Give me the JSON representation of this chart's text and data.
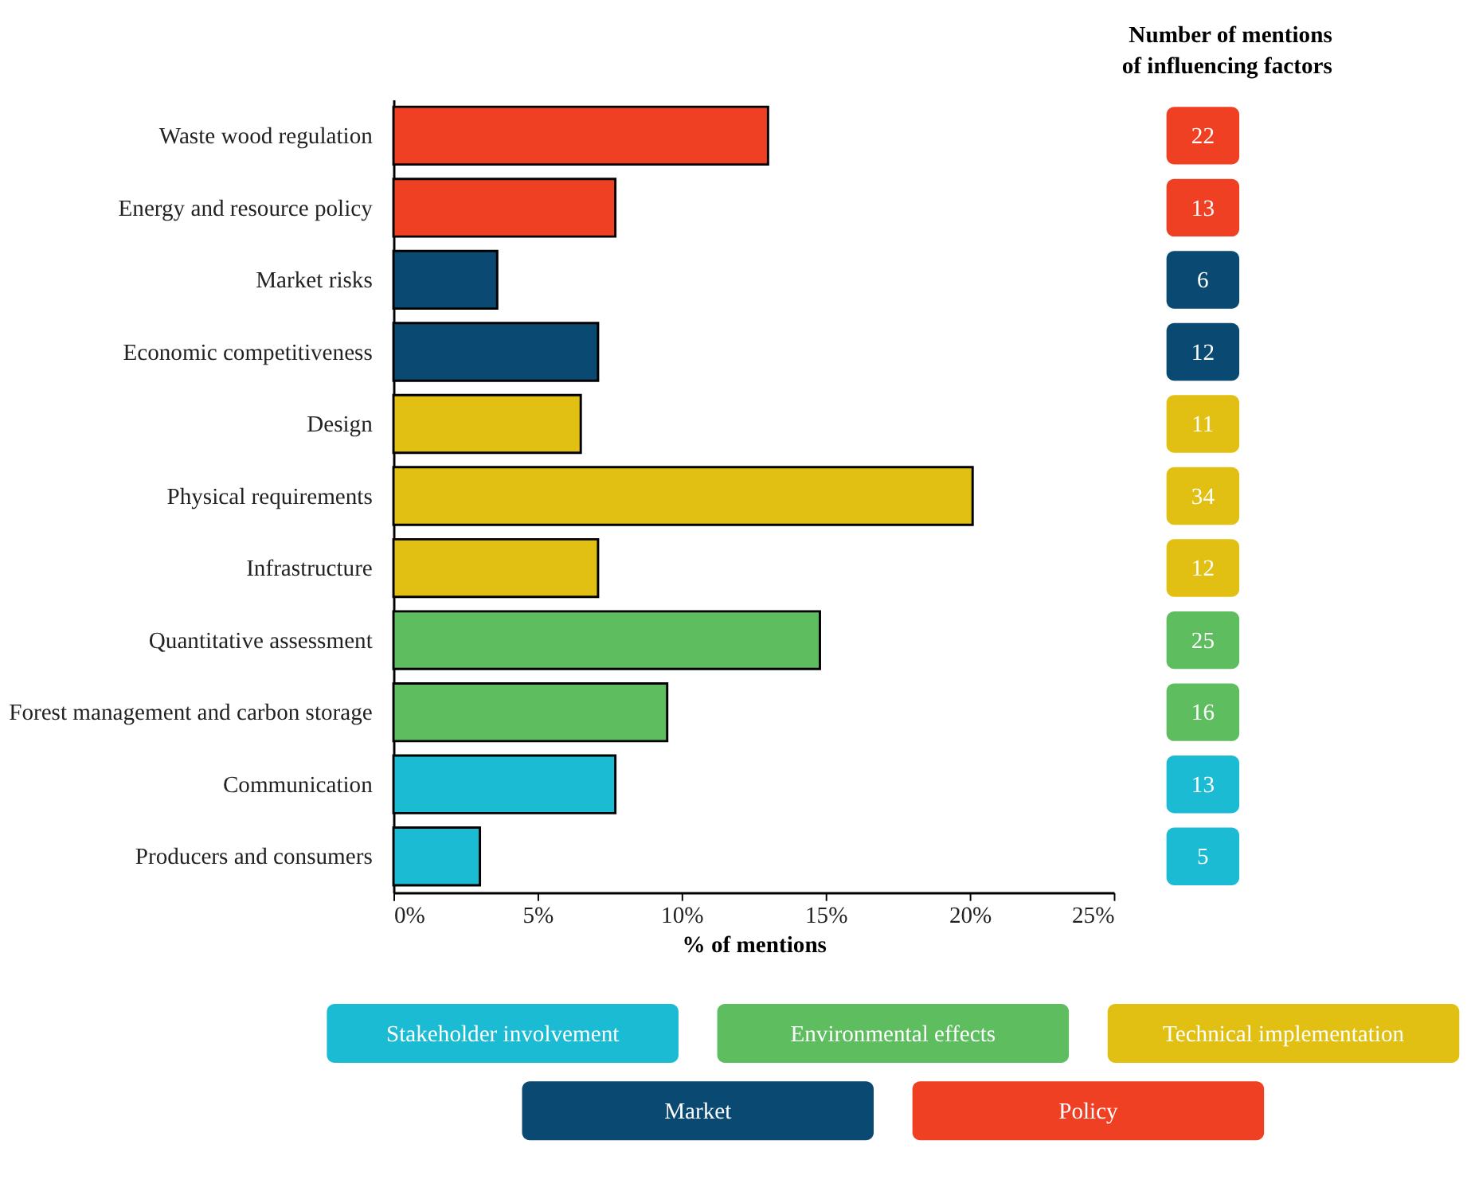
{
  "chart_data": [
    {
      "type": "bar",
      "orientation": "horizontal",
      "categories": [
        "Waste wood regulation",
        "Energy and resource policy",
        "Market risks",
        "Economic competitiveness",
        "Design",
        "Physical requirements",
        "Infrastructure",
        "Quantitative assessment",
        "Forest management and carbon storage",
        "Communication",
        "Producers and consumers"
      ],
      "series": [
        {
          "name": "Stakeholder involvement",
          "color": "#1bbcd3",
          "values": [
            null,
            null,
            null,
            null,
            null,
            null,
            null,
            null,
            null,
            7.7,
            3.0
          ]
        },
        {
          "name": "Environmental effects",
          "color": "#5dbd5f",
          "values": [
            null,
            null,
            null,
            null,
            null,
            null,
            null,
            14.8,
            9.5,
            null,
            null
          ]
        },
        {
          "name": "Technical implementation",
          "color": "#e2c013",
          "values": [
            null,
            null,
            null,
            null,
            6.5,
            20.1,
            7.1,
            null,
            null,
            null,
            null
          ]
        },
        {
          "name": "Market",
          "color": "#0a4a72",
          "values": [
            null,
            null,
            3.6,
            7.1,
            null,
            null,
            null,
            null,
            null,
            null,
            null
          ]
        },
        {
          "name": "Policy",
          "color": "#f04023",
          "values": [
            13.0,
            7.7,
            null,
            null,
            null,
            null,
            null,
            null,
            null,
            null,
            null
          ]
        }
      ],
      "xlabel": "% of mentions",
      "xlim": [
        0,
        25
      ],
      "xticks": [
        {
          "value": 0,
          "label": "0%"
        },
        {
          "value": 5,
          "label": "5%"
        },
        {
          "value": 10,
          "label": "10%"
        },
        {
          "value": 15,
          "label": "15%"
        },
        {
          "value": 20,
          "label": "20%"
        },
        {
          "value": 25,
          "label": "25%"
        }
      ],
      "legend": "bottom",
      "grid": false
    },
    {
      "type": "other",
      "title": "Number of mentions\nof influencing factors",
      "categories": [
        null,
        null,
        null,
        null,
        null,
        null,
        null,
        null,
        null,
        null,
        null
      ],
      "values": [
        22,
        13,
        6,
        12,
        11,
        34,
        12,
        25,
        16,
        13,
        5
      ],
      "colors": [
        "#f04023",
        "#f04023",
        "#0a4a72",
        "#0a4a72",
        "#e2c013",
        "#e2c013",
        "#e2c013",
        "#5dbd5f",
        "#5dbd5f",
        "#1bbcd3",
        "#1bbcd3"
      ],
      "data_labels": true
    }
  ]
}
